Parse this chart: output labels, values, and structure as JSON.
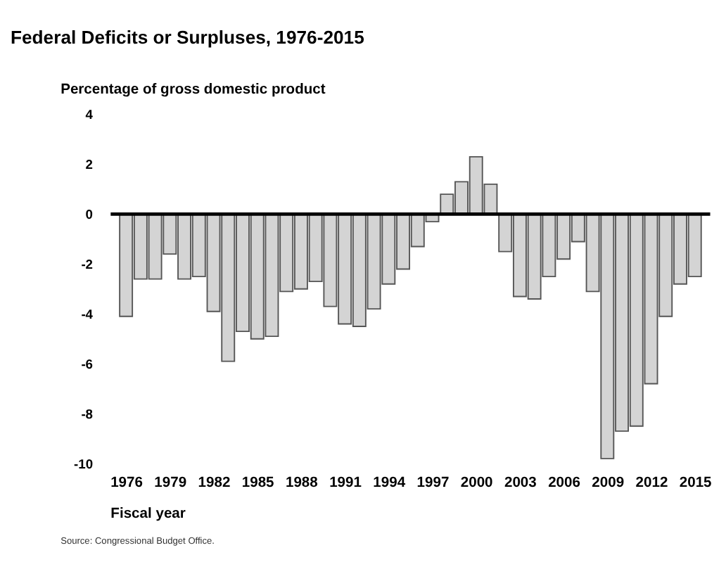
{
  "chart_data": {
    "type": "bar",
    "title": "Federal Deficits or Surpluses, 1976-2015",
    "ylabel": "Percentage of gross domestic product",
    "xlabel": "Fiscal year",
    "x": [
      1976,
      1977,
      1978,
      1979,
      1980,
      1981,
      1982,
      1983,
      1984,
      1985,
      1986,
      1987,
      1988,
      1989,
      1990,
      1991,
      1992,
      1993,
      1994,
      1995,
      1996,
      1997,
      1998,
      1999,
      2000,
      2001,
      2002,
      2003,
      2004,
      2005,
      2006,
      2007,
      2008,
      2009,
      2010,
      2011,
      2012,
      2013,
      2014,
      2015
    ],
    "values": [
      -4.1,
      -2.6,
      -2.6,
      -1.6,
      -2.6,
      -2.5,
      -3.9,
      -5.9,
      -4.7,
      -5.0,
      -4.9,
      -3.1,
      -3.0,
      -2.7,
      -3.7,
      -4.4,
      -4.5,
      -3.8,
      -2.8,
      -2.2,
      -1.3,
      -0.3,
      0.8,
      1.3,
      2.3,
      1.2,
      -1.5,
      -3.3,
      -3.4,
      -2.5,
      -1.8,
      -1.1,
      -3.1,
      -9.8,
      -8.7,
      -8.5,
      -6.8,
      -4.1,
      -2.8,
      -2.5
    ],
    "color": "#d4d4d4",
    "xlim": [
      1975.4,
      2015.6
    ],
    "xticks": [
      1976,
      1979,
      1982,
      1985,
      1988,
      1991,
      1994,
      1997,
      2000,
      2003,
      2006,
      2009,
      2012,
      2015
    ],
    "ylim": [
      -10,
      4
    ],
    "yticks": [
      -10,
      -8,
      -6,
      -4,
      -2,
      0,
      2,
      4
    ],
    "ref_lines": [
      {
        "axis": "y",
        "value": 0,
        "color": "#000000"
      }
    ],
    "grid": false,
    "annotations": [
      "Source: Congressional Budget Office."
    ]
  }
}
